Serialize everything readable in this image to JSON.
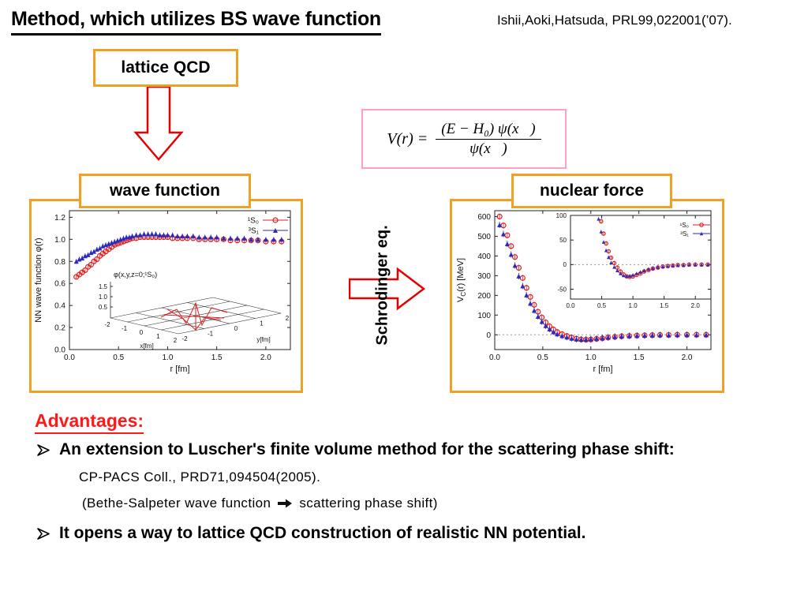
{
  "title": "Method, which utilizes BS wave function",
  "citation": "Ishii,Aoki,Hatsuda, PRL99,022001(’07).",
  "boxes": {
    "lattice_qcd": "lattice QCD",
    "wave_function": "wave function",
    "nuclear_force": "nuclear force"
  },
  "formula": {
    "lhs": "V(r) =",
    "numerator": "(E − H₀) ψ(x⃗)",
    "denominator": "ψ(x⃗)"
  },
  "schrodinger_label": "Schrodinger eq.",
  "advantages": {
    "heading": "Advantages:",
    "bullet1": "An extension to Luscher's finite volume method for the scattering phase shift:",
    "ref": "CP-PACS Coll., PRD71,094504(2005).",
    "note_pre": "(Bethe-Salpeter wave function",
    "note_post": "scattering phase shift)",
    "bullet2": "It opens a way to lattice QCD construction of realistic NN potential."
  },
  "colors": {
    "orange": "#f0a023",
    "pink": "#ff9ec8",
    "arrow_red": "#e60000",
    "advantages_red": "#ff1a1a",
    "series_red": "#dd2222",
    "series_blue": "#2a2ac0"
  },
  "chart_data": [
    {
      "id": "wave",
      "type": "scatter",
      "title": "",
      "xlabel": "r [fm]",
      "ylabel": "NN wave function φ(r)",
      "xlim": [
        0,
        2.25
      ],
      "ylim": [
        0,
        1.26
      ],
      "xticks": [
        "0.0",
        "0.5",
        "1.0",
        "1.5",
        "2.0"
      ],
      "yticks": [
        "0.0",
        "0.2",
        "0.4",
        "0.6",
        "0.8",
        "1.0",
        "1.2"
      ],
      "legend_position": "top-right",
      "grid": false,
      "series": [
        {
          "name": "¹S₀",
          "marker": "circle",
          "color": "#dd2222",
          "x": [
            0.07,
            0.1,
            0.13,
            0.16,
            0.19,
            0.22,
            0.25,
            0.28,
            0.31,
            0.34,
            0.37,
            0.4,
            0.43,
            0.46,
            0.49,
            0.52,
            0.55,
            0.58,
            0.61,
            0.64,
            0.68,
            0.72,
            0.76,
            0.8,
            0.84,
            0.88,
            0.92,
            0.96,
            1.0,
            1.05,
            1.1,
            1.15,
            1.2,
            1.26,
            1.32,
            1.38,
            1.44,
            1.5,
            1.57,
            1.64,
            1.71,
            1.78,
            1.85,
            1.92,
            2.0,
            2.08,
            2.16
          ],
          "y": [
            0.66,
            0.68,
            0.7,
            0.72,
            0.75,
            0.77,
            0.8,
            0.82,
            0.85,
            0.87,
            0.89,
            0.91,
            0.93,
            0.95,
            0.96,
            0.97,
            0.98,
            0.99,
            1.0,
            1.01,
            1.01,
            1.02,
            1.02,
            1.02,
            1.02,
            1.02,
            1.02,
            1.02,
            1.02,
            1.01,
            1.01,
            1.01,
            1.01,
            1.01,
            1.0,
            1.0,
            1.0,
            1.0,
            1.0,
            0.99,
            0.99,
            0.99,
            0.99,
            0.99,
            0.98,
            0.98,
            0.98
          ]
        },
        {
          "name": "³S₁",
          "marker": "triangle",
          "color": "#2a2ac0",
          "x": [
            0.07,
            0.1,
            0.13,
            0.16,
            0.19,
            0.22,
            0.25,
            0.28,
            0.31,
            0.34,
            0.37,
            0.4,
            0.43,
            0.46,
            0.49,
            0.52,
            0.55,
            0.58,
            0.61,
            0.64,
            0.68,
            0.72,
            0.76,
            0.8,
            0.84,
            0.88,
            0.92,
            0.96,
            1.0,
            1.05,
            1.1,
            1.15,
            1.2,
            1.26,
            1.32,
            1.38,
            1.44,
            1.5,
            1.57,
            1.64,
            1.71,
            1.78,
            1.85,
            1.92,
            2.0,
            2.08,
            2.16
          ],
          "y": [
            0.8,
            0.82,
            0.83,
            0.85,
            0.86,
            0.88,
            0.89,
            0.91,
            0.92,
            0.94,
            0.95,
            0.96,
            0.97,
            0.98,
            0.99,
            1.0,
            1.01,
            1.02,
            1.02,
            1.03,
            1.04,
            1.04,
            1.05,
            1.05,
            1.05,
            1.05,
            1.04,
            1.04,
            1.04,
            1.04,
            1.03,
            1.03,
            1.03,
            1.03,
            1.02,
            1.02,
            1.02,
            1.02,
            1.01,
            1.01,
            1.01,
            1.01,
            1.0,
            1.0,
            1.0,
            1.0,
            1.0
          ]
        }
      ],
      "inset3d": {
        "label": "φ(x,y,z=0;¹S₀)",
        "zticks": [
          "1.5",
          "1.0",
          "0.5"
        ],
        "ticks": [
          "-2",
          "-1",
          "0",
          "1",
          "2"
        ],
        "xlabel": "x[fm]",
        "ylabel": "y[fm]",
        "color": "#dd2222"
      }
    },
    {
      "id": "force",
      "type": "scatter",
      "title": "",
      "xlabel": "r [fm]",
      "ylabel": "V_{C}(r) [MeV]",
      "xlim": [
        0,
        2.25
      ],
      "ylim": [
        -75,
        630
      ],
      "xticks": [
        "0.0",
        "0.5",
        "1.0",
        "1.5",
        "2.0"
      ],
      "yticks": [
        "0",
        "100",
        "200",
        "300",
        "400",
        "500",
        "600"
      ],
      "zeroline": true,
      "grid": false,
      "series": [
        {
          "name": "¹S₀",
          "marker": "circle",
          "color": "#dd2222",
          "x": [
            0.05,
            0.09,
            0.13,
            0.17,
            0.21,
            0.25,
            0.29,
            0.33,
            0.37,
            0.41,
            0.45,
            0.49,
            0.53,
            0.57,
            0.61,
            0.65,
            0.7,
            0.75,
            0.8,
            0.85,
            0.9,
            0.95,
            1.0,
            1.06,
            1.12,
            1.18,
            1.25,
            1.32,
            1.4,
            1.48,
            1.56,
            1.64,
            1.72,
            1.81,
            1.9,
            2.0,
            2.1,
            2.2
          ],
          "y": [
            600,
            555,
            505,
            450,
            395,
            340,
            288,
            238,
            192,
            152,
            117,
            88,
            63,
            43,
            27,
            14,
            3,
            -6,
            -14,
            -20,
            -24,
            -25,
            -24,
            -21,
            -18,
            -14,
            -11,
            -8,
            -6,
            -4,
            -3,
            -2,
            -1,
            -1,
            0,
            0,
            0,
            0
          ]
        },
        {
          "name": "³S₁",
          "marker": "triangle",
          "color": "#2a2ac0",
          "x": [
            0.05,
            0.09,
            0.13,
            0.17,
            0.21,
            0.25,
            0.29,
            0.33,
            0.37,
            0.41,
            0.45,
            0.49,
            0.53,
            0.57,
            0.61,
            0.65,
            0.7,
            0.75,
            0.8,
            0.85,
            0.9,
            0.95,
            1.0,
            1.06,
            1.12,
            1.18,
            1.25,
            1.32,
            1.4,
            1.48,
            1.56,
            1.64,
            1.72,
            1.81,
            1.9,
            2.0,
            2.1,
            2.2
          ],
          "y": [
            558,
            512,
            462,
            408,
            352,
            298,
            248,
            202,
            160,
            124,
            93,
            67,
            46,
            29,
            15,
            4,
            -5,
            -12,
            -18,
            -22,
            -23,
            -23,
            -21,
            -18,
            -15,
            -12,
            -9,
            -7,
            -5,
            -4,
            -3,
            -2,
            -1,
            -1,
            0,
            0,
            0,
            0
          ]
        }
      ],
      "inset": {
        "xlim": [
          0,
          2.25
        ],
        "ylim": [
          -70,
          100
        ],
        "xticks": [
          "0.0",
          "0.5",
          "1.0",
          "1.5",
          "2.0"
        ],
        "yticks": [
          "-50",
          "0",
          "50",
          "100"
        ],
        "zeroline": true
      }
    }
  ]
}
